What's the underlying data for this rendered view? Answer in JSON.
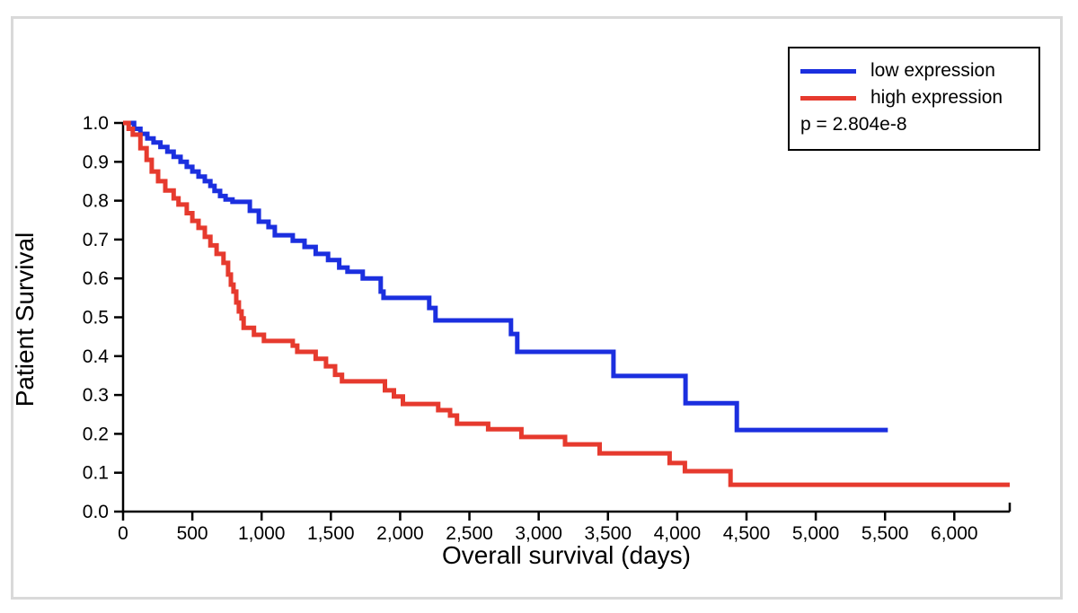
{
  "frame": {
    "border_color": "#d9d9d9",
    "background": "#ffffff"
  },
  "chart_data": {
    "type": "line",
    "subtype": "kaplan-meier-step-survival",
    "title": "",
    "xlabel": "Overall survival (days)",
    "ylabel": "Patient Survival",
    "xlim": [
      0,
      6400
    ],
    "ylim": [
      0.0,
      1.0
    ],
    "grid": false,
    "axis_color": "#000000",
    "x_ticks": [
      {
        "value": 0,
        "label": "0"
      },
      {
        "value": 500,
        "label": "500"
      },
      {
        "value": 1000,
        "label": "1,000"
      },
      {
        "value": 1500,
        "label": "1,500"
      },
      {
        "value": 2000,
        "label": "2,000"
      },
      {
        "value": 2500,
        "label": "2,500"
      },
      {
        "value": 3000,
        "label": "3,000"
      },
      {
        "value": 3500,
        "label": "3,500"
      },
      {
        "value": 4000,
        "label": "4,000"
      },
      {
        "value": 4500,
        "label": "4,500"
      },
      {
        "value": 5000,
        "label": "5,000"
      },
      {
        "value": 5500,
        "label": "5,500"
      },
      {
        "value": 6000,
        "label": "6,000"
      }
    ],
    "y_ticks": [
      {
        "value": 0.0,
        "label": "0.0"
      },
      {
        "value": 0.1,
        "label": "0.1"
      },
      {
        "value": 0.2,
        "label": "0.2"
      },
      {
        "value": 0.3,
        "label": "0.3"
      },
      {
        "value": 0.4,
        "label": "0.4"
      },
      {
        "value": 0.5,
        "label": "0.5"
      },
      {
        "value": 0.6,
        "label": "0.6"
      },
      {
        "value": 0.7,
        "label": "0.7"
      },
      {
        "value": 0.8,
        "label": "0.8"
      },
      {
        "value": 0.9,
        "label": "0.9"
      },
      {
        "value": 1.0,
        "label": "1.0"
      }
    ],
    "legend": {
      "position": "top-right",
      "entries": [
        {
          "label": "low expression",
          "color": "#1b2fdf"
        },
        {
          "label": "high expression",
          "color": "#e63a2e"
        }
      ],
      "note": "p = 2.804e-8"
    },
    "series": [
      {
        "name": "low expression",
        "color": "#1b2fdf",
        "step": "post",
        "points": [
          [
            0,
            1.0
          ],
          [
            80,
            0.985
          ],
          [
            125,
            0.972
          ],
          [
            175,
            0.96
          ],
          [
            220,
            0.95
          ],
          [
            270,
            0.938
          ],
          [
            320,
            0.926
          ],
          [
            365,
            0.913
          ],
          [
            415,
            0.9
          ],
          [
            460,
            0.887
          ],
          [
            500,
            0.875
          ],
          [
            545,
            0.862
          ],
          [
            590,
            0.85
          ],
          [
            630,
            0.838
          ],
          [
            660,
            0.825
          ],
          [
            700,
            0.812
          ],
          [
            740,
            0.803
          ],
          [
            790,
            0.797
          ],
          [
            915,
            0.774
          ],
          [
            980,
            0.746
          ],
          [
            1050,
            0.732
          ],
          [
            1095,
            0.711
          ],
          [
            1225,
            0.697
          ],
          [
            1310,
            0.681
          ],
          [
            1390,
            0.663
          ],
          [
            1480,
            0.647
          ],
          [
            1560,
            0.628
          ],
          [
            1620,
            0.617
          ],
          [
            1730,
            0.6
          ],
          [
            1860,
            0.566
          ],
          [
            1880,
            0.55
          ],
          [
            2210,
            0.524
          ],
          [
            2255,
            0.492
          ],
          [
            2800,
            0.457
          ],
          [
            2845,
            0.411
          ],
          [
            3540,
            0.349
          ],
          [
            4060,
            0.279
          ],
          [
            4430,
            0.21
          ],
          [
            5520,
            0.21
          ]
        ]
      },
      {
        "name": "high expression",
        "color": "#e63a2e",
        "step": "post",
        "points": [
          [
            0,
            1.0
          ],
          [
            40,
            0.985
          ],
          [
            70,
            0.97
          ],
          [
            125,
            0.935
          ],
          [
            170,
            0.905
          ],
          [
            207,
            0.875
          ],
          [
            253,
            0.85
          ],
          [
            305,
            0.826
          ],
          [
            365,
            0.806
          ],
          [
            400,
            0.79
          ],
          [
            460,
            0.768
          ],
          [
            500,
            0.748
          ],
          [
            545,
            0.73
          ],
          [
            590,
            0.707
          ],
          [
            630,
            0.685
          ],
          [
            675,
            0.663
          ],
          [
            725,
            0.64
          ],
          [
            758,
            0.61
          ],
          [
            778,
            0.584
          ],
          [
            797,
            0.566
          ],
          [
            817,
            0.538
          ],
          [
            836,
            0.515
          ],
          [
            855,
            0.497
          ],
          [
            870,
            0.473
          ],
          [
            945,
            0.455
          ],
          [
            1017,
            0.439
          ],
          [
            1225,
            0.427
          ],
          [
            1257,
            0.411
          ],
          [
            1390,
            0.393
          ],
          [
            1465,
            0.374
          ],
          [
            1530,
            0.352
          ],
          [
            1580,
            0.335
          ],
          [
            1890,
            0.312
          ],
          [
            1955,
            0.296
          ],
          [
            2020,
            0.277
          ],
          [
            2275,
            0.261
          ],
          [
            2360,
            0.247
          ],
          [
            2410,
            0.226
          ],
          [
            2635,
            0.212
          ],
          [
            2875,
            0.192
          ],
          [
            3190,
            0.173
          ],
          [
            3440,
            0.15
          ],
          [
            3945,
            0.125
          ],
          [
            4055,
            0.104
          ],
          [
            4385,
            0.069
          ],
          [
            6400,
            0.069
          ]
        ]
      }
    ]
  }
}
